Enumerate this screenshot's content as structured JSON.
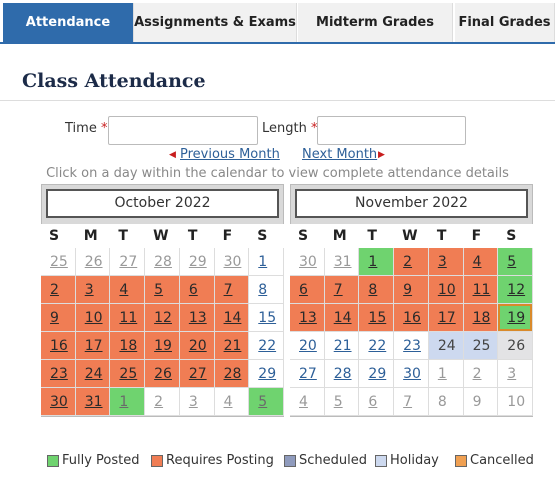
{
  "tabs": [
    {
      "label": "Attendance",
      "active": true
    },
    {
      "label": "Assignments & Exams",
      "active": false
    },
    {
      "label": "Midterm Grades",
      "active": false
    },
    {
      "label": "Final Grades",
      "active": false
    }
  ],
  "heading": "Class Attendance",
  "form": {
    "time_label": "Time",
    "length_label": "Length",
    "required_mark": "*"
  },
  "nav": {
    "previous": "Previous Month",
    "next": "Next Month"
  },
  "instruction": "Click on a day within the calendar to view complete attendance details",
  "weekdays": [
    "S",
    "M",
    "T",
    "W",
    "T",
    "F",
    "S"
  ],
  "calendars": [
    {
      "title": "October 2022",
      "weeks": [
        [
          {
            "day": "25",
            "kind": "other-link"
          },
          {
            "day": "26",
            "kind": "other-link"
          },
          {
            "day": "27",
            "kind": "other-link"
          },
          {
            "day": "28",
            "kind": "other-link"
          },
          {
            "day": "29",
            "kind": "other-link"
          },
          {
            "day": "30",
            "kind": "other-link"
          },
          {
            "day": "1",
            "kind": "link"
          }
        ],
        [
          {
            "day": "2",
            "kind": "link",
            "status": "Requires Posting"
          },
          {
            "day": "3",
            "kind": "link",
            "status": "Requires Posting"
          },
          {
            "day": "4",
            "kind": "link",
            "status": "Requires Posting"
          },
          {
            "day": "5",
            "kind": "link",
            "status": "Requires Posting"
          },
          {
            "day": "6",
            "kind": "link",
            "status": "Requires Posting"
          },
          {
            "day": "7",
            "kind": "link",
            "status": "Requires Posting"
          },
          {
            "day": "8",
            "kind": "link"
          }
        ],
        [
          {
            "day": "9",
            "kind": "link",
            "status": "Requires Posting"
          },
          {
            "day": "10",
            "kind": "link",
            "status": "Requires Posting"
          },
          {
            "day": "11",
            "kind": "link",
            "status": "Requires Posting"
          },
          {
            "day": "12",
            "kind": "link",
            "status": "Requires Posting"
          },
          {
            "day": "13",
            "kind": "link",
            "status": "Requires Posting"
          },
          {
            "day": "14",
            "kind": "link",
            "status": "Requires Posting"
          },
          {
            "day": "15",
            "kind": "link"
          }
        ],
        [
          {
            "day": "16",
            "kind": "link",
            "status": "Requires Posting"
          },
          {
            "day": "17",
            "kind": "link",
            "status": "Requires Posting"
          },
          {
            "day": "18",
            "kind": "link",
            "status": "Requires Posting"
          },
          {
            "day": "19",
            "kind": "link",
            "status": "Requires Posting"
          },
          {
            "day": "20",
            "kind": "link",
            "status": "Requires Posting"
          },
          {
            "day": "21",
            "kind": "link",
            "status": "Requires Posting"
          },
          {
            "day": "22",
            "kind": "link"
          }
        ],
        [
          {
            "day": "23",
            "kind": "link",
            "status": "Requires Posting"
          },
          {
            "day": "24",
            "kind": "link",
            "status": "Requires Posting"
          },
          {
            "day": "25",
            "kind": "link",
            "status": "Requires Posting"
          },
          {
            "day": "26",
            "kind": "link",
            "status": "Requires Posting"
          },
          {
            "day": "27",
            "kind": "link",
            "status": "Requires Posting"
          },
          {
            "day": "28",
            "kind": "link",
            "status": "Requires Posting"
          },
          {
            "day": "29",
            "kind": "link"
          }
        ],
        [
          {
            "day": "30",
            "kind": "link",
            "status": "Requires Posting"
          },
          {
            "day": "31",
            "kind": "link",
            "status": "Requires Posting"
          },
          {
            "day": "1",
            "kind": "other-link",
            "status": "Fully Posted"
          },
          {
            "day": "2",
            "kind": "other-link"
          },
          {
            "day": "3",
            "kind": "other-link"
          },
          {
            "day": "4",
            "kind": "other-link"
          },
          {
            "day": "5",
            "kind": "other-link",
            "status": "Fully Posted"
          }
        ]
      ]
    },
    {
      "title": "November 2022",
      "weeks": [
        [
          {
            "day": "30",
            "kind": "other-link"
          },
          {
            "day": "31",
            "kind": "other-link"
          },
          {
            "day": "1",
            "kind": "link",
            "status": "Fully Posted"
          },
          {
            "day": "2",
            "kind": "link",
            "status": "Requires Posting"
          },
          {
            "day": "3",
            "kind": "link",
            "status": "Requires Posting"
          },
          {
            "day": "4",
            "kind": "link",
            "status": "Requires Posting"
          },
          {
            "day": "5",
            "kind": "link",
            "status": "Fully Posted"
          }
        ],
        [
          {
            "day": "6",
            "kind": "link",
            "status": "Requires Posting"
          },
          {
            "day": "7",
            "kind": "link",
            "status": "Requires Posting"
          },
          {
            "day": "8",
            "kind": "link",
            "status": "Requires Posting"
          },
          {
            "day": "9",
            "kind": "link",
            "status": "Requires Posting"
          },
          {
            "day": "10",
            "kind": "link",
            "status": "Requires Posting"
          },
          {
            "day": "11",
            "kind": "link",
            "status": "Requires Posting"
          },
          {
            "day": "12",
            "kind": "link",
            "status": "Fully Posted"
          }
        ],
        [
          {
            "day": "13",
            "kind": "link",
            "status": "Requires Posting"
          },
          {
            "day": "14",
            "kind": "link",
            "status": "Requires Posting"
          },
          {
            "day": "15",
            "kind": "link",
            "status": "Requires Posting"
          },
          {
            "day": "16",
            "kind": "link",
            "status": "Requires Posting"
          },
          {
            "day": "17",
            "kind": "link",
            "status": "Requires Posting"
          },
          {
            "day": "18",
            "kind": "link",
            "status": "Requires Posting"
          },
          {
            "day": "19",
            "kind": "link",
            "status": "Fully Posted",
            "today": true
          }
        ],
        [
          {
            "day": "20",
            "kind": "link"
          },
          {
            "day": "21",
            "kind": "link"
          },
          {
            "day": "22",
            "kind": "link"
          },
          {
            "day": "23",
            "kind": "link"
          },
          {
            "day": "24",
            "kind": "text",
            "status": "Holiday"
          },
          {
            "day": "25",
            "kind": "text",
            "status": "Holiday"
          },
          {
            "day": "26",
            "kind": "text",
            "shaded": true
          }
        ],
        [
          {
            "day": "27",
            "kind": "link"
          },
          {
            "day": "28",
            "kind": "link"
          },
          {
            "day": "29",
            "kind": "link"
          },
          {
            "day": "30",
            "kind": "link"
          },
          {
            "day": "1",
            "kind": "other-link"
          },
          {
            "day": "2",
            "kind": "other-link"
          },
          {
            "day": "3",
            "kind": "other-link"
          }
        ],
        [
          {
            "day": "4",
            "kind": "other-link"
          },
          {
            "day": "5",
            "kind": "other-link"
          },
          {
            "day": "6",
            "kind": "other-link"
          },
          {
            "day": "7",
            "kind": "other-link"
          },
          {
            "day": "8",
            "kind": "other"
          },
          {
            "day": "9",
            "kind": "other"
          },
          {
            "day": "10",
            "kind": "other"
          }
        ]
      ]
    }
  ],
  "legend": [
    {
      "label": "Fully Posted",
      "color": "#6fd36f"
    },
    {
      "label": "Requires Posting",
      "color": "#f07d54"
    },
    {
      "label": "Scheduled",
      "color": "#8f9bbd"
    },
    {
      "label": "Holiday",
      "color": "#cdd9ef"
    },
    {
      "label": "Cancelled",
      "color": "#f0a052"
    }
  ]
}
